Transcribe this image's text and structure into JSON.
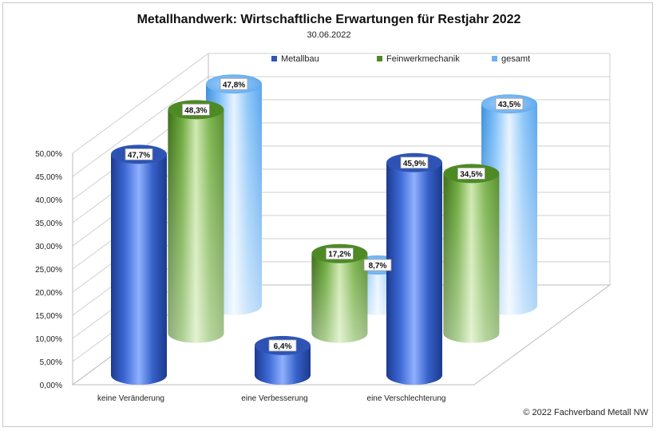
{
  "chart_data": {
    "type": "bar",
    "title": "Metallhandwerk: Wirtschaftliche Erwartungen für Restjahr 2022",
    "subtitle": "30.06.2022",
    "categories": [
      "keine Veränderung",
      "eine Verbesserung",
      "eine Verschlechterung"
    ],
    "series": [
      {
        "name": "Metallbau",
        "values": [
          47.7,
          6.4,
          45.9
        ],
        "labels": [
          "47,7%",
          "6,4%",
          "45,9%"
        ],
        "color": "#2f55b8"
      },
      {
        "name": "Feinwerkmechanik",
        "values": [
          48.3,
          17.2,
          34.5
        ],
        "labels": [
          "48,3%",
          "17,2%",
          "34,5%"
        ],
        "color": "#5f9a2c"
      },
      {
        "name": "gesamt",
        "values": [
          47.8,
          8.7,
          43.5
        ],
        "labels": [
          "47,8%",
          "8,7%",
          "43,5%"
        ],
        "color": "#6fb1f0"
      }
    ],
    "yticks": [
      "0,00%",
      "5,00%",
      "10,00%",
      "15,00%",
      "20,00%",
      "25,00%",
      "30,00%",
      "35,00%",
      "40,00%",
      "45,00%",
      "50,00%"
    ],
    "ylim": [
      0,
      50
    ],
    "grid": true,
    "legend_position": "top",
    "style": "3d-cylinder"
  },
  "footer": {
    "copyright": "© 2022 Fachverband Metall NW"
  }
}
